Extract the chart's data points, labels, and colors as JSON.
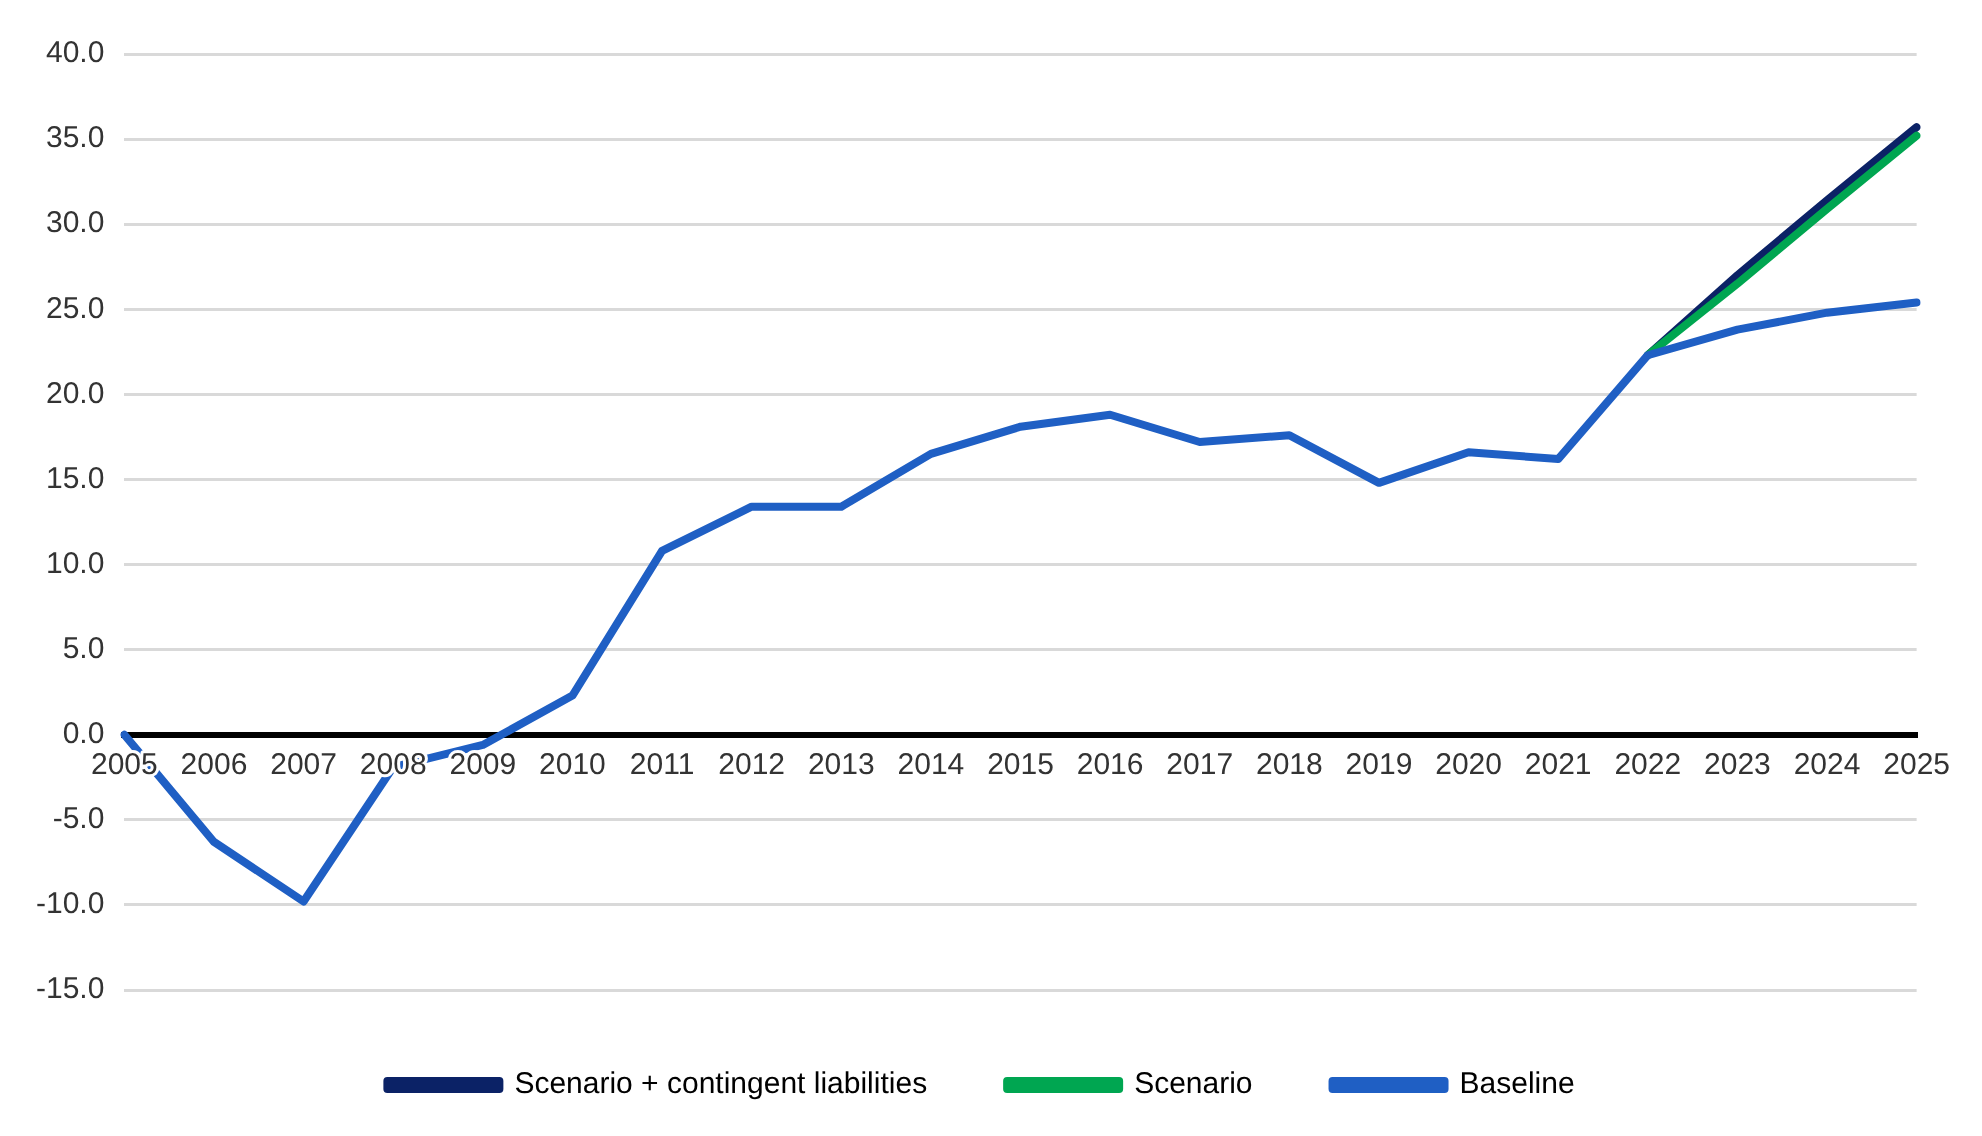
{
  "chart_data": {
    "type": "line",
    "categories": [
      "2005",
      "2006",
      "2007",
      "2008",
      "2009",
      "2010",
      "2011",
      "2012",
      "2013",
      "2014",
      "2015",
      "2016",
      "2017",
      "2018",
      "2019",
      "2020",
      "2021",
      "2022",
      "2023",
      "2024",
      "2025"
    ],
    "series": [
      {
        "name": "Scenario + contingent liabilities",
        "color": "#0b2266",
        "values": [
          null,
          null,
          null,
          null,
          null,
          null,
          null,
          null,
          null,
          null,
          null,
          null,
          null,
          null,
          null,
          null,
          null,
          22.3,
          27.0,
          31.4,
          35.7
        ]
      },
      {
        "name": "Scenario",
        "color": "#00a651",
        "values": [
          null,
          null,
          null,
          null,
          null,
          null,
          null,
          null,
          null,
          null,
          null,
          null,
          null,
          null,
          null,
          null,
          null,
          22.3,
          26.5,
          30.9,
          35.2
        ]
      },
      {
        "name": "Baseline",
        "color": "#1f5fc4",
        "values": [
          0.0,
          -6.3,
          -9.8,
          -1.9,
          -0.6,
          2.3,
          10.8,
          13.4,
          13.4,
          16.5,
          18.1,
          18.8,
          17.2,
          17.6,
          14.8,
          16.6,
          16.2,
          22.3,
          23.8,
          24.8,
          25.4
        ]
      }
    ],
    "ylim": [
      -15,
      40
    ],
    "yticks": [
      {
        "value": 40,
        "label": "40.0"
      },
      {
        "value": 35,
        "label": "35.0"
      },
      {
        "value": 30,
        "label": "30.0"
      },
      {
        "value": 25,
        "label": "25.0"
      },
      {
        "value": 20,
        "label": "20.0"
      },
      {
        "value": 15,
        "label": "15.0"
      },
      {
        "value": 10,
        "label": "10.0"
      },
      {
        "value": 5,
        "label": "5.0"
      },
      {
        "value": 0,
        "label": "0.0"
      },
      {
        "value": -5,
        "label": "-5.0"
      },
      {
        "value": -10,
        "label": "-10.0"
      },
      {
        "value": -15,
        "label": "-15.0"
      }
    ],
    "grid": "y",
    "legend": "bottom",
    "marker": "none"
  }
}
